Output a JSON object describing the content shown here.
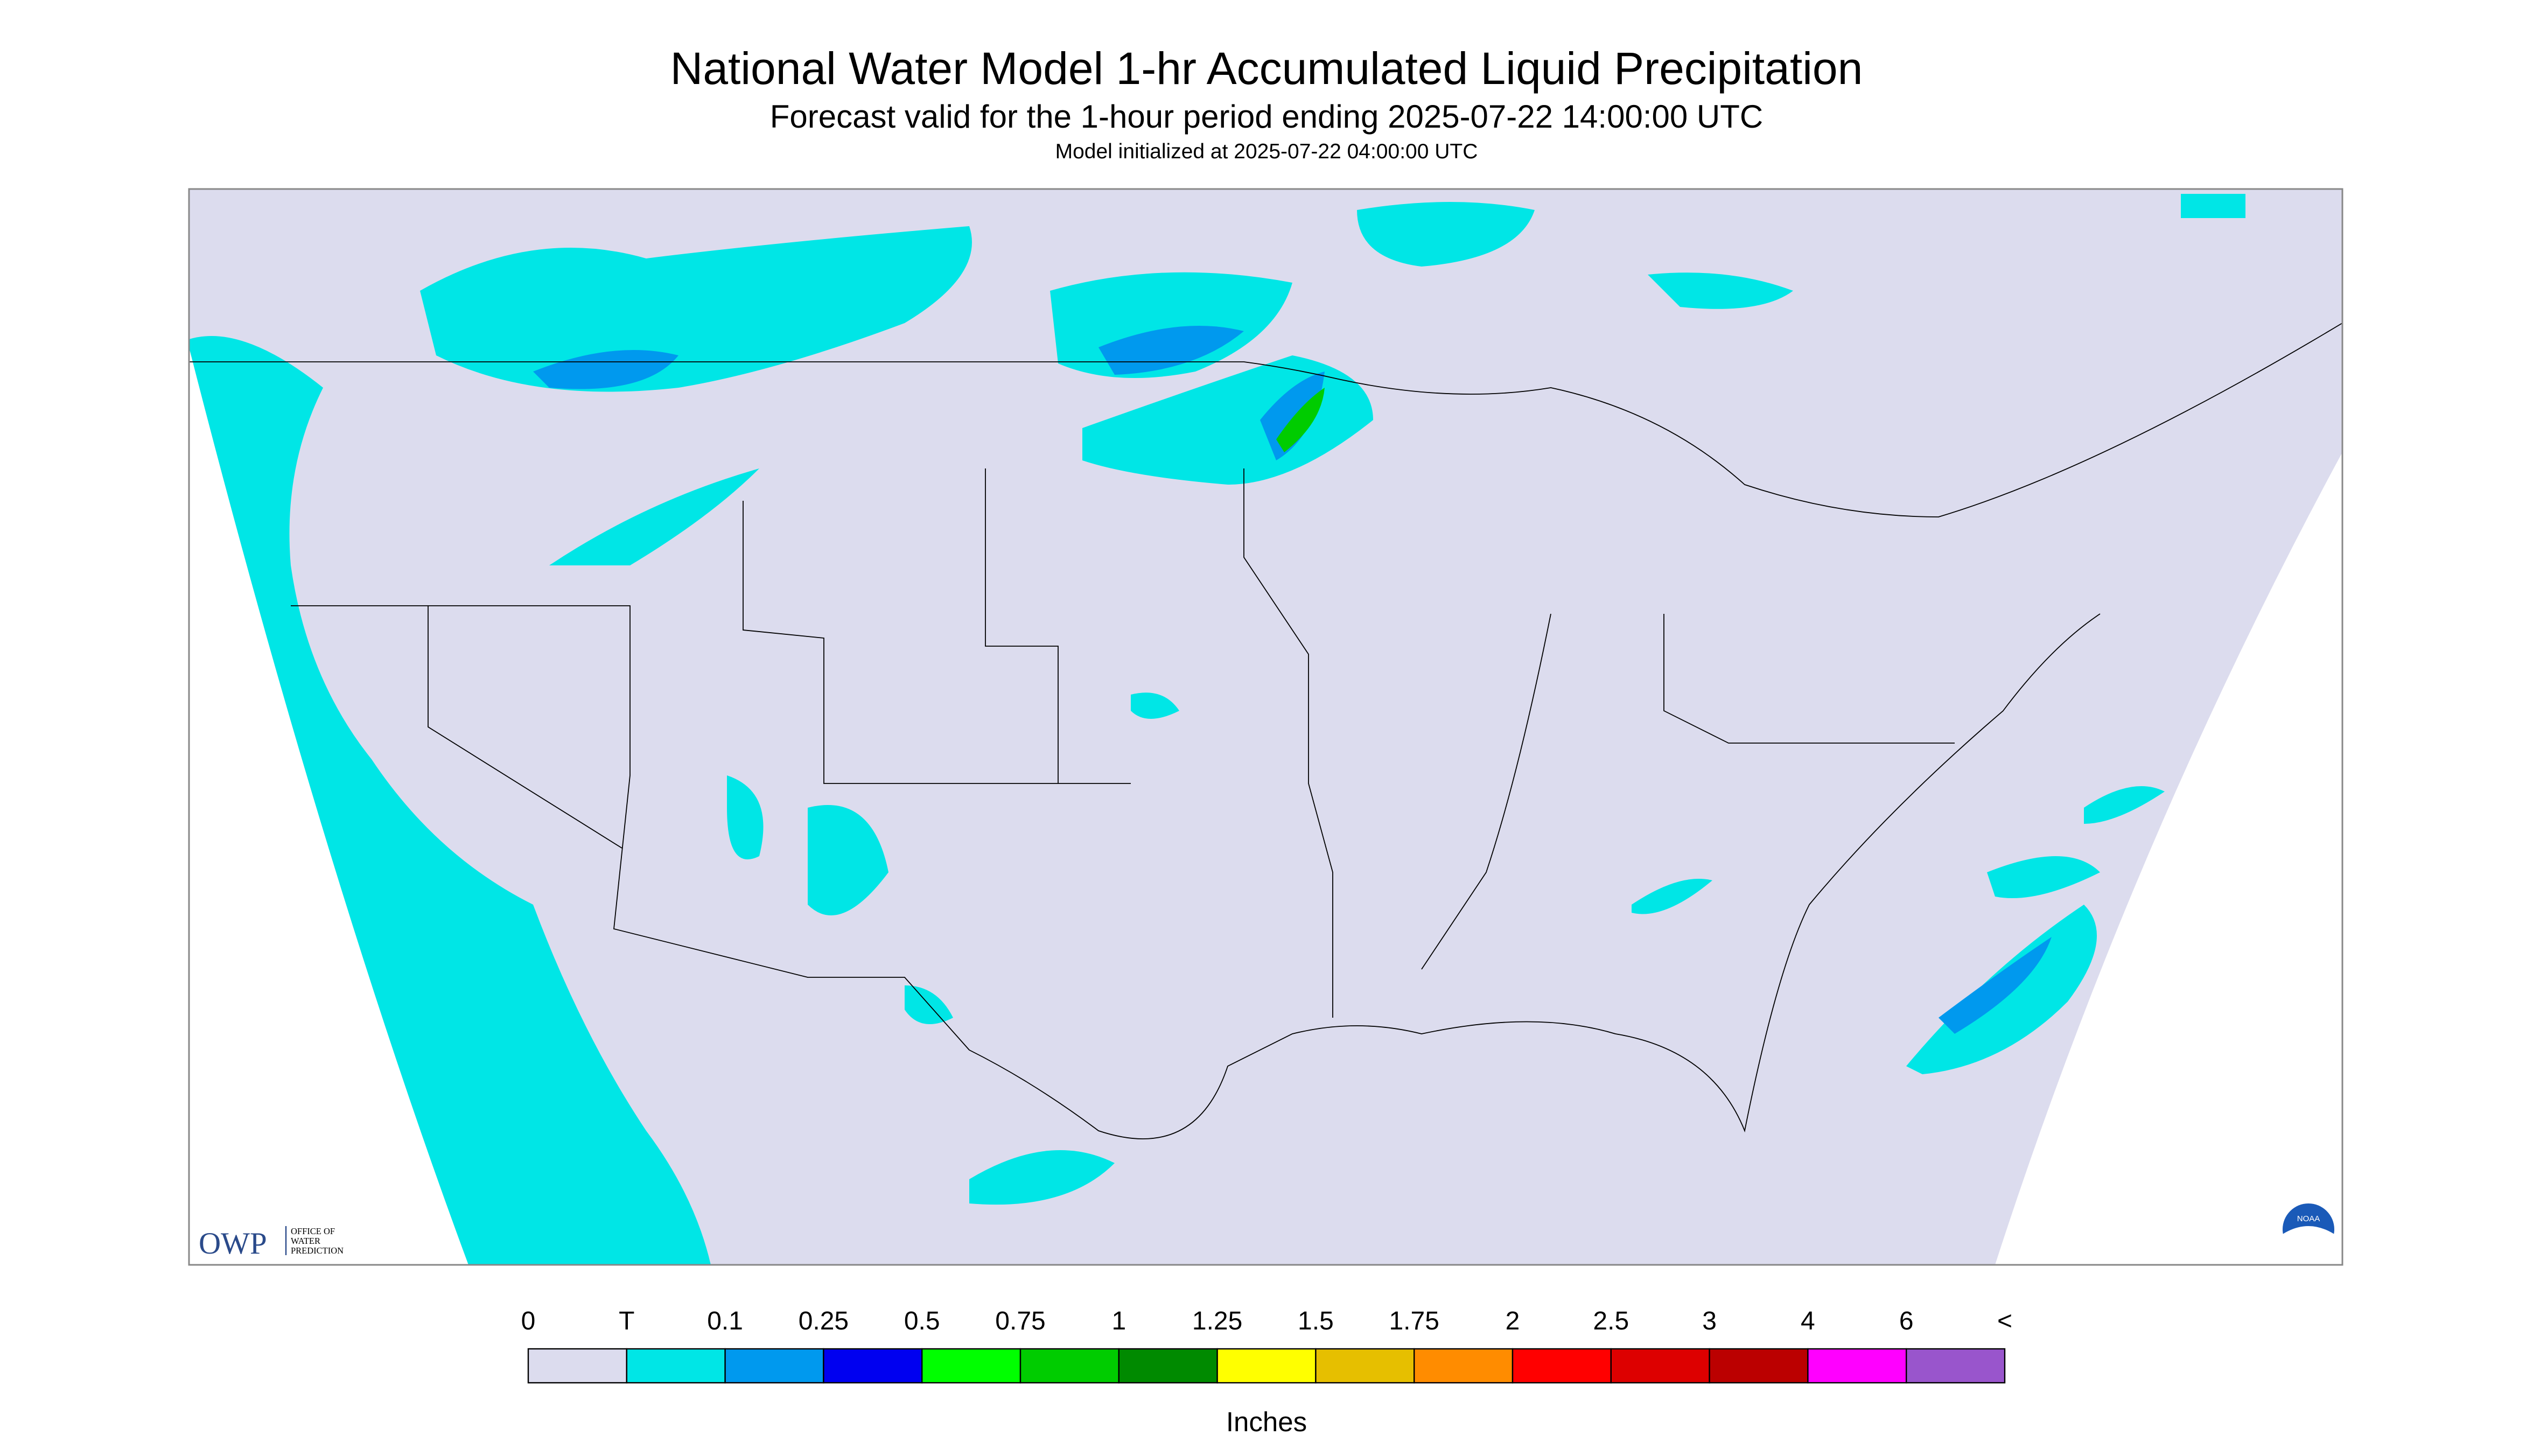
{
  "header": {
    "title": "National Water Model 1-hr Accumulated Liquid Precipitation",
    "subtitle": "Forecast valid for the 1-hour period ending 2025-07-22 14:00:00 UTC",
    "init": "Model initialized at 2025-07-22 04:00:00 UTC"
  },
  "legend": {
    "labels": [
      "0",
      "T",
      "0.1",
      "0.25",
      "0.5",
      "0.75",
      "1",
      "1.25",
      "1.5",
      "1.75",
      "2",
      "2.5",
      "3",
      "4",
      "6",
      "<"
    ],
    "colors": [
      "#dcdcee",
      "#00e6e6",
      "#0099ee",
      "#0000f0",
      "#00ff00",
      "#00cc00",
      "#008a00",
      "#ffff00",
      "#e6bf00",
      "#ff8c00",
      "#ff0000",
      "#dd0000",
      "#bb0000",
      "#ff00ff",
      "#9955cc"
    ],
    "unit": "Inches"
  },
  "logo": {
    "abbr": "OWP",
    "line1": "OFFICE OF",
    "line2": "WATER",
    "line3": "PREDICTION",
    "noaa": "NOAA"
  }
}
